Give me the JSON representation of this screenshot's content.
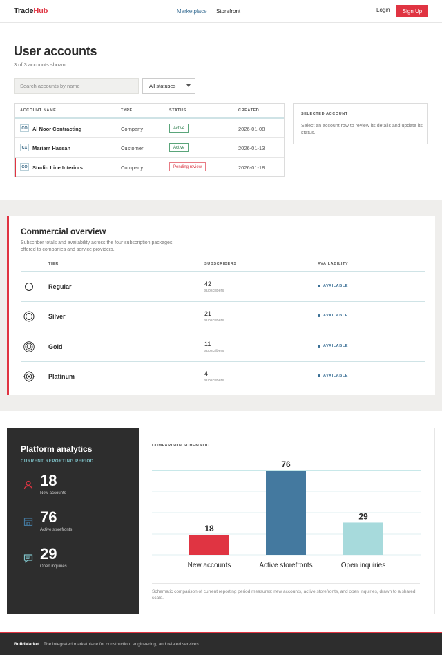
{
  "header": {
    "logo_part1": "Trade",
    "logo_part2": "Hub",
    "nav": [
      "Marketplace",
      "Storefront"
    ],
    "login": "Login",
    "signup": "Sign Up",
    "accent": "#e03442",
    "nav_active_color": "#3a6f95"
  },
  "accounts": {
    "title": "User accounts",
    "count_text": "3 of 3 accounts shown",
    "search_placeholder": "Search accounts by name",
    "status_filter": "All statuses",
    "columns": [
      "ACCOUNT NAME",
      "TYPE",
      "STATUS",
      "CREATED"
    ],
    "rows": [
      {
        "initials": "CO",
        "name": "Al Noor Contracting",
        "type": "Company",
        "status": "Active",
        "status_kind": "active",
        "created": "2026-01-08"
      },
      {
        "initials": "CX",
        "name": "Mariam Hassan",
        "type": "Customer",
        "status": "Active",
        "status_kind": "active",
        "created": "2026-01-13"
      },
      {
        "initials": "CO",
        "name": "Studio Line Interiors",
        "type": "Company",
        "status": "Pending review",
        "status_kind": "pending",
        "created": "2026-01-18"
      }
    ],
    "selected_panel": {
      "title": "SELECTED ACCOUNT",
      "text": "Select an account row to review its details and update its status."
    }
  },
  "commercial": {
    "title": "Commercial overview",
    "subtitle": "Subscriber totals and availability across the four subscription packages offered to companies and service providers.",
    "columns": [
      "TIER",
      "SUBSCRIBERS",
      "AVAILABILITY"
    ],
    "tiers": [
      {
        "name": "Regular",
        "subscribers": "42",
        "unit": "subscribers",
        "availability": "AVAILABLE",
        "icon": "regular-tier-icon"
      },
      {
        "name": "Silver",
        "subscribers": "21",
        "unit": "subscribers",
        "availability": "AVAILABLE",
        "icon": "silver-tier-icon"
      },
      {
        "name": "Gold",
        "subscribers": "11",
        "unit": "subscribers",
        "availability": "AVAILABLE",
        "icon": "gold-tier-icon"
      },
      {
        "name": "Platinum",
        "subscribers": "4",
        "unit": "subscribers",
        "availability": "AVAILABLE",
        "icon": "platinum-tier-icon"
      }
    ]
  },
  "analytics": {
    "title": "Platform analytics",
    "period": "CURRENT REPORTING PERIOD",
    "metrics": [
      {
        "value": "18",
        "label": "New accounts",
        "icon": "user-icon"
      },
      {
        "value": "76",
        "label": "Active storefronts",
        "icon": "storefront-icon"
      },
      {
        "value": "29",
        "label": "Open inquiries",
        "icon": "chat-icon"
      }
    ],
    "schematic_title": "COMPARISON SCHEMATIC",
    "note": "Schematic comparison of current reporting period measures: new accounts, active storefronts, and open inquiries, drawn to a shared scale."
  },
  "chart_data": {
    "type": "bar",
    "title": "",
    "categories": [
      "New accounts",
      "Active storefronts",
      "Open inquiries"
    ],
    "values": [
      18,
      76,
      29
    ],
    "colors": [
      "#e03442",
      "#44799f",
      "#a7dadc"
    ],
    "ylim": [
      0,
      76
    ],
    "grid": true,
    "xlabel": "",
    "ylabel": ""
  },
  "footer": {
    "brand": "BuildMarket",
    "text": "The integrated marketplace for construction, engineering, and related services."
  }
}
